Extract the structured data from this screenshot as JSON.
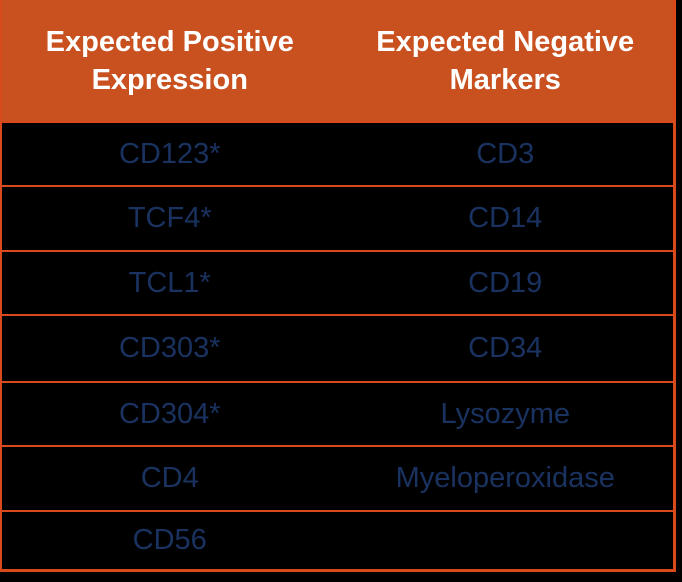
{
  "chart_data": {
    "type": "table",
    "title": "",
    "columns": [
      "Expected Positive Expression",
      "Expected Negative Markers"
    ],
    "rows": [
      [
        "CD123*",
        "CD3"
      ],
      [
        "TCF4*",
        "CD14"
      ],
      [
        "TCL1*",
        "CD19"
      ],
      [
        "CD303*",
        "CD34"
      ],
      [
        "CD304*",
        "Lysozyme"
      ],
      [
        "CD4",
        "Myeloperoxidase"
      ],
      [
        "CD56",
        ""
      ]
    ]
  },
  "colors": {
    "header_bg": "#C9501F",
    "header_text": "#FFFFFF",
    "body_bg": "#000000",
    "body_text": "#1A3260",
    "border": "#D84A1B"
  }
}
